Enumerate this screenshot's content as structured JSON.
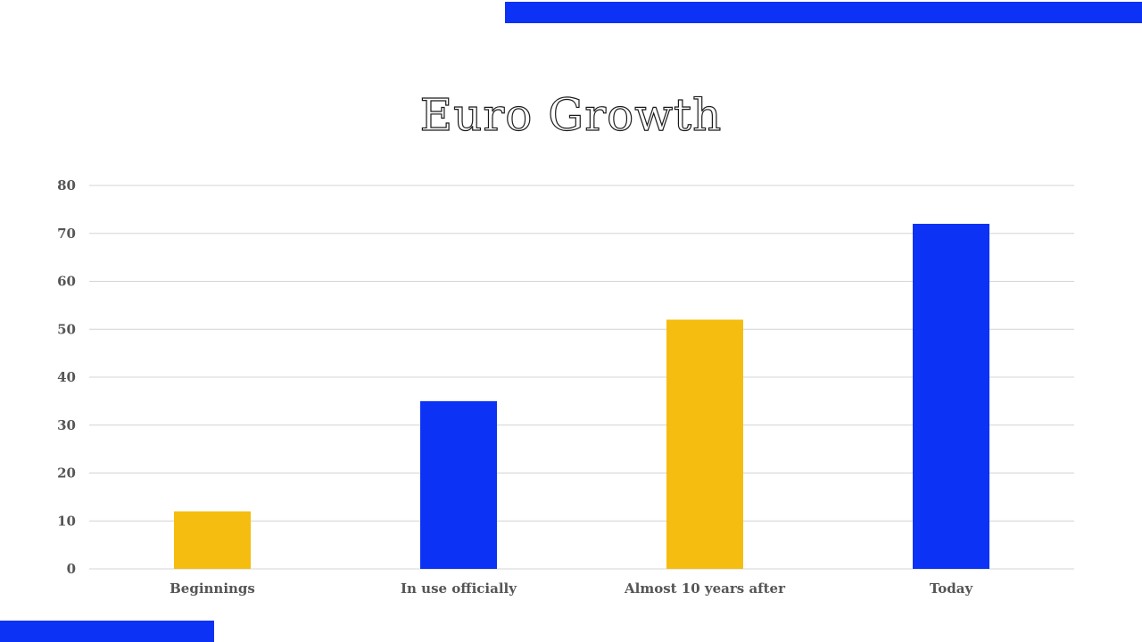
{
  "colors": {
    "accent_blue": "#0c32f5",
    "accent_yellow": "#f5bd0f",
    "grid": "#d4d4d4",
    "axis_text": "#555555"
  },
  "chart_data": {
    "type": "bar",
    "title": "Euro Growth",
    "categories": [
      "Beginnings",
      "In use officially",
      "Almost 10 years after",
      "Today"
    ],
    "values": [
      12,
      35,
      52,
      72
    ],
    "bar_colors": [
      "#f5bd0f",
      "#0c32f5",
      "#f5bd0f",
      "#0c32f5"
    ],
    "ylim": [
      0,
      80
    ],
    "yticks": [
      0,
      10,
      20,
      30,
      40,
      50,
      60,
      70,
      80
    ],
    "xlabel": "",
    "ylabel": "",
    "grid": true,
    "legend": "none"
  }
}
